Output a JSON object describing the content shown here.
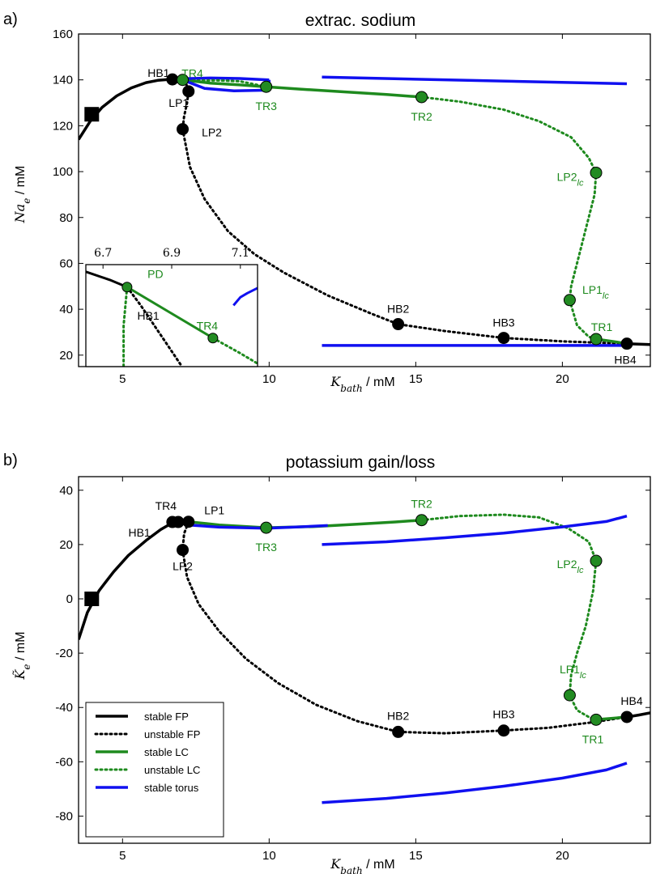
{
  "figure": {
    "background": "#ffffff"
  },
  "legend": [
    {
      "key": "stable_fp",
      "label": "stable FP",
      "color": "#000000",
      "dash": false
    },
    {
      "key": "unstable_fp",
      "label": "unstable FP",
      "color": "#000000",
      "dash": true
    },
    {
      "key": "stable_lc",
      "label": "stable LC",
      "color": "#1e8a1e",
      "dash": false
    },
    {
      "key": "unstable_lc",
      "label": "unstable LC",
      "color": "#1e8a1e",
      "dash": true
    },
    {
      "key": "stable_torus",
      "label": "stable torus",
      "color": "#1010f0",
      "dash": false
    }
  ],
  "chart_data": [
    {
      "panel": "a)",
      "type": "line",
      "title": "extrac. sodium",
      "xlabel": "K_bath / mM",
      "xlabel_main": "K",
      "xlabel_sub": "bath",
      "xlabel_unit": " / mM",
      "ylabel_main": "Na",
      "ylabel_sub": "e",
      "ylabel_unit": " / mM",
      "xlim": [
        3.5,
        23.0
      ],
      "ylim": [
        15,
        160
      ],
      "xticks": [
        5,
        10,
        15,
        20
      ],
      "yticks": [
        20,
        40,
        60,
        80,
        100,
        120,
        140,
        160
      ],
      "series": [
        {
          "name": "stable FP",
          "style": "stable_fp",
          "x": [
            3.5,
            3.9,
            4.3,
            4.8,
            5.3,
            5.8,
            6.2,
            6.6,
            6.9,
            7.05
          ],
          "y": [
            114,
            122,
            128,
            133,
            136.5,
            138.8,
            139.8,
            140.2,
            140.2,
            140.0
          ]
        },
        {
          "name": "unstable FP upper",
          "style": "unstable_fp",
          "x": [
            7.05,
            7.2,
            7.25,
            7.2,
            7.1,
            7.05
          ],
          "y": [
            140.0,
            137.5,
            135,
            130,
            124,
            118.5
          ]
        },
        {
          "name": "unstable FP branch",
          "style": "unstable_fp",
          "x": [
            7.05,
            7.3,
            7.8,
            8.6,
            9.5,
            10.5,
            12.0,
            13.5,
            14.4,
            16.0,
            18.0,
            20.0,
            21.5,
            22.2
          ],
          "y": [
            118.5,
            102,
            88,
            74,
            64,
            56,
            46,
            38,
            33.5,
            30.5,
            27.5,
            26.0,
            25.3,
            25.0
          ]
        },
        {
          "name": "stable FP right",
          "style": "stable_fp",
          "x": [
            22.2,
            22.6,
            23.0
          ],
          "y": [
            25.0,
            24.8,
            24.6
          ]
        },
        {
          "name": "stable LC",
          "style": "stable_lc",
          "x": [
            7.05,
            8.0,
            9.0,
            9.9,
            11.0,
            12.5,
            14.0,
            15.2
          ],
          "y": [
            140.0,
            138.6,
            137.8,
            137.0,
            136.0,
            134.8,
            133.6,
            132.5
          ]
        },
        {
          "name": "unstable LC",
          "style": "unstable_lc",
          "x": [
            15.2,
            16.5,
            18.0,
            19.2,
            20.3,
            20.9,
            21.15,
            21.1,
            20.8,
            20.5,
            20.3,
            20.25,
            20.5,
            20.9,
            21.15
          ],
          "y": [
            132.5,
            130.5,
            127,
            122,
            115,
            106,
            99.5,
            90,
            75,
            60,
            50,
            44,
            33,
            28,
            27
          ]
        },
        {
          "name": "stable LC right",
          "style": "stable_lc",
          "x": [
            21.15,
            21.7,
            22.2
          ],
          "y": [
            27.0,
            26.0,
            25.0
          ]
        },
        {
          "name": "torus loop upper",
          "style": "stable_torus",
          "x": [
            7.05,
            8.0,
            9.0,
            10.0
          ],
          "y": [
            140.5,
            140.8,
            140.6,
            140.0
          ]
        },
        {
          "name": "torus loop lower",
          "style": "stable_torus",
          "x": [
            7.05,
            7.8,
            8.8,
            10.0
          ],
          "y": [
            140.0,
            136.3,
            135.2,
            135.5
          ]
        },
        {
          "name": "torus loop right edge",
          "style": "stable_torus",
          "x": [
            10.0,
            10.0
          ],
          "y": [
            140.0,
            135.5
          ]
        },
        {
          "name": "unstable LC loop",
          "style": "unstable_lc",
          "x": [
            7.4,
            8.2,
            9.0,
            9.9
          ],
          "y": [
            139.6,
            139.8,
            139.4,
            137.0
          ]
        },
        {
          "name": "torus upper",
          "style": "stable_torus",
          "x": [
            11.8,
            22.2
          ],
          "y": [
            141.2,
            138.3
          ]
        },
        {
          "name": "torus lower",
          "style": "stable_torus",
          "x": [
            11.8,
            22.2
          ],
          "y": [
            24.2,
            24.2
          ]
        }
      ],
      "points": [
        {
          "label": "HB1",
          "x": 6.7,
          "y": 140.2,
          "color": "black",
          "lx": -17,
          "ly": -8
        },
        {
          "label": "TR4",
          "x": 7.05,
          "y": 140.0,
          "color": "green",
          "lx": 12,
          "ly": -8
        },
        {
          "label": "LP1",
          "x": 7.25,
          "y": 135.0,
          "color": "black",
          "lx": -12,
          "ly": 14
        },
        {
          "label": "LP2",
          "x": 7.05,
          "y": 118.5,
          "color": "black",
          "lx": 36,
          "ly": 4
        },
        {
          "label": "TR3",
          "x": 9.9,
          "y": 137.0,
          "color": "green",
          "lx": 0,
          "ly": 24
        },
        {
          "label": "TR2",
          "x": 15.2,
          "y": 132.5,
          "color": "green",
          "lx": 0,
          "ly": 24
        },
        {
          "label": "LP2",
          "sub": "lc",
          "x": 21.15,
          "y": 99.5,
          "color": "green",
          "lx": -32,
          "ly": 5
        },
        {
          "label": "LP1",
          "sub": "lc",
          "x": 20.25,
          "y": 44.0,
          "color": "green",
          "lx": 32,
          "ly": -13
        },
        {
          "label": "HB2",
          "x": 14.4,
          "y": 33.5,
          "color": "black",
          "lx": 0,
          "ly": -19
        },
        {
          "label": "HB3",
          "x": 18.0,
          "y": 27.5,
          "color": "black",
          "lx": 0,
          "ly": -19
        },
        {
          "label": "TR1",
          "x": 21.15,
          "y": 27.0,
          "color": "green",
          "lx": 7,
          "ly": -15
        },
        {
          "label": "HB4",
          "x": 22.2,
          "y": 25.0,
          "color": "black",
          "lx": -2,
          "ly": 20
        }
      ],
      "initial_square": {
        "x": 3.95,
        "y": 125
      },
      "inset": {
        "xlim": [
          6.65,
          7.15
        ],
        "ylim": [
          0,
          1
        ],
        "xticks": [
          "6.7",
          "6.9",
          "7.1"
        ],
        "xtick_values": [
          6.7,
          6.9,
          7.1
        ],
        "series": [
          {
            "style": "stable_fp",
            "x": [
              6.65,
              6.72,
              6.77
            ],
            "y": [
              0.93,
              0.85,
              0.78
            ]
          },
          {
            "style": "unstable_fp",
            "x": [
              6.77,
              6.81,
              6.85,
              6.89,
              6.93
            ],
            "y": [
              0.78,
              0.6,
              0.4,
              0.2,
              0.0
            ]
          },
          {
            "style": "unstable_lc",
            "x": [
              6.77,
              6.76,
              6.76
            ],
            "y": [
              0.78,
              0.4,
              0.0
            ]
          },
          {
            "style": "stable_lc",
            "x": [
              6.77,
              7.02
            ],
            "y": [
              0.78,
              0.28
            ]
          },
          {
            "style": "unstable_lc",
            "x": [
              7.02,
              7.1,
              7.15
            ],
            "y": [
              0.28,
              0.13,
              0.03
            ]
          },
          {
            "style": "stable_torus",
            "x": [
              7.08,
              7.1,
              7.12,
              7.15
            ],
            "y": [
              0.6,
              0.68,
              0.72,
              0.77
            ]
          }
        ],
        "points": [
          {
            "label": "PD",
            "x": 6.77,
            "y": 0.78,
            "color": "green",
            "lx": 35,
            "ly": -16
          },
          {
            "label": "HB1",
            "x": 6.82,
            "y": 0.5,
            "color": "none",
            "lx": 5,
            "ly": 0
          },
          {
            "label": "TR4",
            "x": 7.02,
            "y": 0.28,
            "color": "green",
            "lx": -7,
            "ly": -15
          }
        ]
      }
    },
    {
      "panel": "b)",
      "type": "line",
      "title": "potassium gain/loss",
      "xlabel": "K_bath / mM",
      "xlabel_main": "K",
      "xlabel_sub": "bath",
      "xlabel_unit": " / mM",
      "ylabel_main": "K̃",
      "ylabel_sub": "e",
      "ylabel_unit": " / mM",
      "xlim": [
        3.5,
        23.0
      ],
      "ylim": [
        -90,
        45
      ],
      "xticks": [
        5,
        10,
        15,
        20
      ],
      "yticks": [
        -80,
        -60,
        -40,
        -20,
        0,
        20,
        40
      ],
      "series": [
        {
          "name": "stable FP",
          "style": "stable_fp",
          "x": [
            3.5,
            3.8,
            4.2,
            4.7,
            5.2,
            5.8,
            6.3,
            6.7,
            7.0,
            7.25
          ],
          "y": [
            -15,
            -5,
            3,
            10,
            16,
            21.5,
            25.5,
            28,
            28.3,
            28.4
          ]
        },
        {
          "name": "unstable FP",
          "style": "unstable_fp",
          "x": [
            7.25,
            7.1,
            7.05,
            7.2,
            7.6,
            8.3,
            9.2,
            10.3,
            11.6,
            13.0,
            14.4,
            16.0,
            18.0,
            19.5,
            21.0,
            22.2
          ],
          "y": [
            28.4,
            24,
            18,
            8,
            -2,
            -12,
            -22,
            -31,
            -39,
            -45,
            -49,
            -49.5,
            -48.5,
            -47.5,
            -45.5,
            -43.5
          ]
        },
        {
          "name": "stable FP right",
          "style": "stable_fp",
          "x": [
            22.2,
            22.6,
            23.0
          ],
          "y": [
            -43.5,
            -42.8,
            -42
          ]
        },
        {
          "name": "stable LC",
          "style": "stable_lc",
          "x": [
            7.25,
            8.3,
            9.9,
            11.5,
            13.0,
            14.3,
            15.2
          ],
          "y": [
            28.4,
            27.2,
            26.2,
            26.6,
            27.5,
            28.3,
            29
          ]
        },
        {
          "name": "unstable LC",
          "style": "unstable_lc",
          "x": [
            15.2,
            16.5,
            18.0,
            19.2,
            20.2,
            20.9,
            21.15,
            21.05,
            20.8,
            20.5,
            20.3,
            20.25,
            20.5,
            20.9,
            21.15
          ],
          "y": [
            29,
            30.5,
            31,
            30,
            26,
            21,
            14,
            3,
            -10,
            -20,
            -28,
            -35.5,
            -41,
            -43.5,
            -44.5
          ]
        },
        {
          "name": "stable LC right",
          "style": "stable_lc",
          "x": [
            21.15,
            21.7,
            22.2
          ],
          "y": [
            -44.5,
            -44,
            -43.5
          ]
        },
        {
          "name": "torus near loop",
          "style": "stable_torus",
          "x": [
            7.25,
            8.3,
            9.9,
            11.0,
            12.0
          ],
          "y": [
            27.2,
            26.4,
            26.0,
            26.5,
            27.0
          ]
        },
        {
          "name": "torus upper",
          "style": "stable_torus",
          "x": [
            11.8,
            14.0,
            16.0,
            18.0,
            20.0,
            21.5,
            22.2
          ],
          "y": [
            20,
            21,
            22.5,
            24.2,
            26.5,
            28.5,
            30.5
          ]
        },
        {
          "name": "torus lower",
          "style": "stable_torus",
          "x": [
            11.8,
            14.0,
            16.0,
            18.0,
            20.0,
            21.5,
            22.2
          ],
          "y": [
            -75,
            -73.5,
            -71.5,
            -69,
            -66,
            -63,
            -60.5
          ]
        }
      ],
      "points": [
        {
          "label": "TR4",
          "x": 6.7,
          "y": 28.3,
          "color": "black",
          "lx": -8,
          "ly": -20
        },
        {
          "label": "HB1",
          "x": 6.9,
          "y": 28.3,
          "color": "black",
          "lx": -48,
          "ly": 13
        },
        {
          "label": "LP1",
          "x": 7.25,
          "y": 28.4,
          "color": "black",
          "lx": 32,
          "ly": -14
        },
        {
          "label": "LP2",
          "x": 7.05,
          "y": 18.0,
          "color": "black",
          "lx": 0,
          "ly": 20
        },
        {
          "label": "TR3",
          "x": 9.9,
          "y": 26.2,
          "color": "green",
          "lx": 0,
          "ly": 24
        },
        {
          "label": "TR2",
          "x": 15.2,
          "y": 29.0,
          "color": "green",
          "lx": 0,
          "ly": -20
        },
        {
          "label": "LP2",
          "sub": "lc",
          "x": 21.15,
          "y": 14.0,
          "color": "green",
          "lx": -32,
          "ly": 4
        },
        {
          "label": "LP1",
          "sub": "lc",
          "x": 20.25,
          "y": -35.5,
          "color": "green",
          "lx": 4,
          "ly": -32
        },
        {
          "label": "HB2",
          "x": 14.4,
          "y": -49.0,
          "color": "black",
          "lx": 0,
          "ly": -20
        },
        {
          "label": "HB3",
          "x": 18.0,
          "y": -48.5,
          "color": "black",
          "lx": 0,
          "ly": -20
        },
        {
          "label": "TR1",
          "x": 21.15,
          "y": -44.5,
          "color": "green",
          "lx": -4,
          "ly": 24
        },
        {
          "label": "HB4",
          "x": 22.2,
          "y": -43.5,
          "color": "black",
          "lx": 6,
          "ly": -20
        }
      ],
      "initial_square": {
        "x": 3.95,
        "y": 0
      }
    }
  ]
}
